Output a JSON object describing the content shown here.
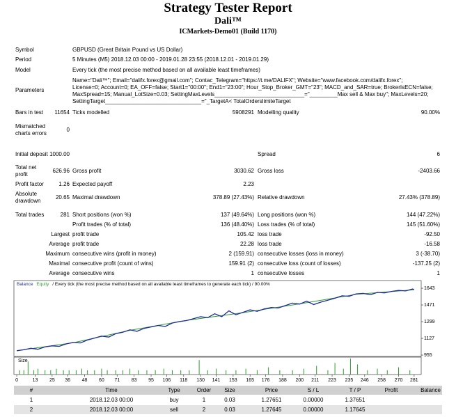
{
  "header": {
    "title": "Strategy Tester Report",
    "subtitle": "Dali™",
    "server": "ICMarkets-Demo01 (Build 1170)"
  },
  "info": [
    {
      "label": "Symbol",
      "value": "GBPUSD (Great Britain Pound vs US Dollar)"
    },
    {
      "label": "Period",
      "value": "5 Minutes (M5) 2018.12.03 00:00 - 2019.01.28 23:55 (2018.12.01 - 2019.01.29)"
    },
    {
      "label": "Model",
      "value": "Every tick (the most precise method based on all available least timeframes)"
    }
  ],
  "parameters": {
    "label": "Parameters",
    "lines": [
      "Name=\"Dali™\"; Email=\"dalifx.forex@gmail.com\"; Contac_Telegram=\"https://t.me/DALIFX\"; Website=\"www.facebook.com/dalifx.forex\";",
      "License=0; Account=0; EA_OFF=false; Start1=\"00:00\"; End1=\"23:00\"; Hour_Stop_Broker_GMT=\"23\"; MACD_and_SAR=true; BrokerIsECN=false;",
      "MaxSpread=15; Manual_LotSize=0.03; SettingMaxLevels_____________________________=\"_________Max sell & Max buy\"; MaxLevels=20;",
      "SettingTarget_______________________________=\"_TargetA< TotalOrderslimiteTarget"
    ]
  },
  "stats": [
    [
      "Bars in test",
      "11654",
      "Ticks modelled",
      "5908291",
      "Modelling quality",
      "90.00%"
    ],
    [
      "Mismatched charts errors",
      "0",
      null,
      null,
      null,
      null
    ],
    [
      "Initial deposit",
      "1000.00",
      null,
      null,
      "Spread",
      "6"
    ],
    [
      "Total net profit",
      "626.96",
      "Gross profit",
      "3030.62",
      "Gross loss",
      "-2403.66"
    ],
    [
      "Profit factor",
      "1.26",
      "Expected payoff",
      "2.23",
      null,
      null
    ],
    [
      "Absolute drawdown",
      "20.65",
      "Maximal drawdown",
      "378.89 (27.43%)",
      "Relative drawdown",
      "27.43% (378.89)"
    ],
    [
      "Total trades",
      "281",
      "Short positions (won %)",
      "137 (49.64%)",
      "Long positions (won %)",
      "144 (47.22%)"
    ],
    [
      null,
      null,
      "Profit trades (% of total)",
      "136 (48.40%)",
      "Loss trades (% of total)",
      "145 (51.60%)"
    ],
    [
      null,
      "Largest",
      "profit trade",
      "105.42",
      "loss trade",
      "-92.50"
    ],
    [
      null,
      "Average",
      "profit trade",
      "22.28",
      "loss trade",
      "-16.58"
    ],
    [
      null,
      "Maximum",
      "consecutive wins (profit in money)",
      "2 (159.91)",
      "consecutive losses (loss in money)",
      "3 (-38.70)"
    ],
    [
      null,
      "Maximal",
      "consecutive profit (count of wins)",
      "159.91 (2)",
      "consecutive loss (count of losses)",
      "-137.25 (2)"
    ],
    [
      null,
      "Average",
      "consecutive wins",
      "1",
      "consecutive losses",
      "1"
    ]
  ],
  "chart_data": [
    {
      "type": "line",
      "note": "/ Every tick (the most precise method based on all available least timeframes to generate each tick) / 90.00%",
      "series": [
        {
          "name": "Balance",
          "color": "#1f2a9c",
          "x": [
            0,
            5,
            10,
            15,
            20,
            25,
            30,
            35,
            40,
            45,
            50,
            55,
            60,
            65,
            70,
            75,
            80,
            85,
            90,
            95,
            100,
            105,
            110,
            115,
            120,
            125,
            130,
            135,
            140,
            145,
            150,
            155,
            160,
            165,
            170,
            175,
            180,
            185,
            190,
            195,
            200,
            205,
            210,
            215,
            220,
            225,
            230,
            235,
            240,
            245,
            250,
            255,
            260,
            265,
            270,
            275,
            280,
            281
          ],
          "values": [
            1000,
            1010,
            1025,
            1015,
            1040,
            1050,
            1045,
            1070,
            1085,
            1080,
            1110,
            1130,
            1150,
            1140,
            1175,
            1190,
            1215,
            1200,
            1230,
            1245,
            1260,
            1250,
            1285,
            1300,
            1310,
            1330,
            1350,
            1340,
            1380,
            1350,
            1410,
            1370,
            1395,
            1420,
            1405,
            1430,
            1445,
            1440,
            1465,
            1490,
            1480,
            1510,
            1475,
            1500,
            1520,
            1540,
            1565,
            1560,
            1585,
            1590,
            1575,
            1600,
            1595,
            1610,
            1620,
            1615,
            1635,
            1626.96
          ]
        },
        {
          "name": "Equity",
          "color": "#2e9e2e",
          "x": [
            0,
            40,
            80,
            120,
            160,
            200,
            240,
            281
          ],
          "values": [
            1000,
            1082,
            1210,
            1312,
            1392,
            1482,
            1580,
            1626.96
          ]
        }
      ],
      "xlim": [
        -2,
        286
      ],
      "ylim": [
        941,
        1722
      ],
      "xticks": [
        0,
        13,
        25,
        36,
        48,
        60,
        71,
        83,
        95,
        106,
        118,
        130,
        141,
        153,
        165,
        176,
        188,
        200,
        211,
        223,
        235,
        246,
        258,
        270,
        281
      ],
      "yticks": [
        955,
        1127,
        1299,
        1471,
        1643
      ]
    },
    {
      "type": "bar",
      "ylabel": "Size",
      "color": "#2e9e2e",
      "x": [
        2,
        5,
        8,
        12,
        15,
        20,
        24,
        28,
        33,
        37,
        42,
        46,
        50,
        55,
        60,
        64,
        70,
        75,
        80,
        86,
        92,
        98,
        104,
        110,
        116,
        122,
        129,
        135,
        141,
        148,
        155,
        162,
        170,
        178,
        186,
        195,
        203,
        212,
        220,
        225,
        231,
        236,
        241,
        248,
        255,
        262,
        270,
        278
      ],
      "values": [
        0.03,
        0.03,
        0.09,
        0.03,
        0.04,
        0.03,
        0.03,
        0.04,
        0.03,
        0.03,
        0.03,
        0.04,
        0.03,
        0.03,
        0.04,
        0.03,
        0.03,
        0.03,
        0.04,
        0.03,
        0.03,
        0.03,
        0.04,
        0.03,
        0.03,
        0.03,
        0.1,
        0.03,
        0.04,
        0.03,
        0.03,
        0.04,
        0.03,
        0.05,
        0.03,
        0.03,
        0.04,
        0.06,
        0.03,
        0.08,
        0.04,
        0.11,
        0.07,
        0.03,
        0.04,
        0.03,
        0.05,
        0.03
      ],
      "xlim": [
        -2,
        286
      ],
      "ylim": [
        0,
        0.12
      ]
    }
  ],
  "table": {
    "columns": [
      "#",
      "Time",
      "Type",
      "Order",
      "Size",
      "Price",
      "S / L",
      "T / P",
      "Profit",
      "Balance"
    ],
    "rows": [
      [
        "1",
        "2018.12.03 00:00",
        "buy",
        "1",
        "0.03",
        "1.27651",
        "0.00000",
        "1.37651",
        null,
        null
      ],
      [
        "2",
        "2018.12.03 00:00",
        "sell",
        "2",
        "0.03",
        "1.27645",
        "0.00000",
        "1.17645",
        null,
        null
      ]
    ]
  }
}
